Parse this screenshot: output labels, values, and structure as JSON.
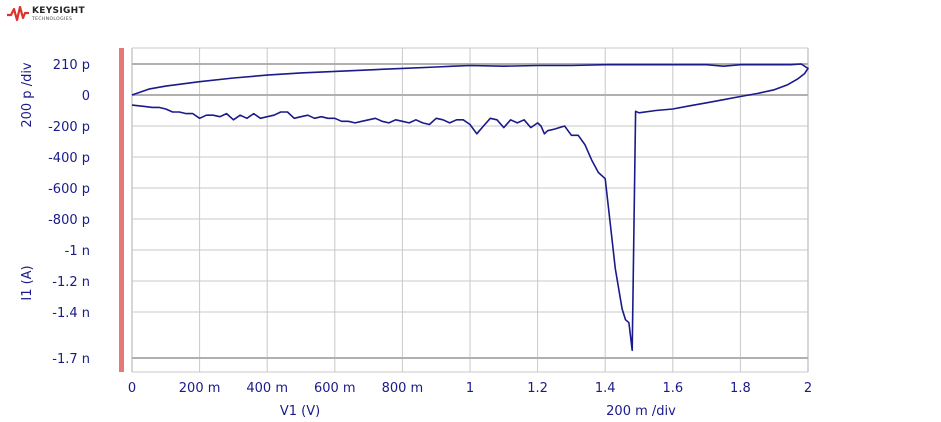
{
  "logo": {
    "name": "KEYSIGHT",
    "sub": "TECHNOLOGIES",
    "color": "#e0302a"
  },
  "chart_data": {
    "type": "line",
    "xlabel": "V1 (V)",
    "xscale_label": "200 m /div",
    "ylabel": "I1 (A)",
    "yscale_label": "200 p /div",
    "xlim": [
      0,
      2
    ],
    "ylim": [
      -1.72e-09,
      2.3e-10
    ],
    "x_ticks": [
      {
        "v": 0,
        "label": "0"
      },
      {
        "v": 0.2,
        "label": "200 m"
      },
      {
        "v": 0.4,
        "label": "400 m"
      },
      {
        "v": 0.6,
        "label": "600 m"
      },
      {
        "v": 0.8,
        "label": "800 m"
      },
      {
        "v": 1.0,
        "label": "1"
      },
      {
        "v": 1.2,
        "label": "1.2"
      },
      {
        "v": 1.4,
        "label": "1.4"
      },
      {
        "v": 1.6,
        "label": "1.6"
      },
      {
        "v": 1.8,
        "label": "1.8"
      },
      {
        "v": 2.0,
        "label": "2"
      }
    ],
    "y_ticks": [
      {
        "v": 2.1e-10,
        "label": "210 p"
      },
      {
        "v": 0,
        "label": "0"
      },
      {
        "v": -2e-10,
        "label": "-200 p"
      },
      {
        "v": -4e-10,
        "label": "-400 p"
      },
      {
        "v": -6e-10,
        "label": "-600 p"
      },
      {
        "v": -8e-10,
        "label": "-800 p"
      },
      {
        "v": -1e-09,
        "label": "-1 n"
      },
      {
        "v": -1.2e-09,
        "label": "-1.2 n"
      },
      {
        "v": -1.4e-09,
        "label": "-1.4 n"
      },
      {
        "v": -1.7e-09,
        "label": "-1.7 n"
      }
    ],
    "grid": true,
    "colors": {
      "series": "#1a1a8a",
      "grid": "#c8c8c8",
      "marker_bar": "#e87878"
    },
    "series": [
      {
        "x": [
          0,
          0.05,
          0.1,
          0.2,
          0.3,
          0.4,
          0.5,
          0.6,
          0.7,
          0.8,
          0.9,
          0.95,
          1.0,
          1.1,
          1.2,
          1.3,
          1.4,
          1.5,
          1.6,
          1.7,
          1.75,
          1.8,
          1.85,
          1.9,
          1.95,
          1.98,
          2.0,
          1.99,
          1.97,
          1.94,
          1.9,
          1.85,
          1.8,
          1.75,
          1.7,
          1.65,
          1.6,
          1.55,
          1.5,
          1.49,
          1.48,
          1.47,
          1.46,
          1.45,
          1.43,
          1.4,
          1.38,
          1.36,
          1.34,
          1.32,
          1.3,
          1.28,
          1.25,
          1.23,
          1.22,
          1.21,
          1.2,
          1.18,
          1.16,
          1.14,
          1.12,
          1.1,
          1.08,
          1.06,
          1.04,
          1.02,
          1.0,
          0.98,
          0.96,
          0.94,
          0.92,
          0.9,
          0.88,
          0.86,
          0.84,
          0.82,
          0.8,
          0.78,
          0.76,
          0.74,
          0.72,
          0.7,
          0.68,
          0.66,
          0.64,
          0.62,
          0.6,
          0.58,
          0.56,
          0.54,
          0.52,
          0.5,
          0.48,
          0.46,
          0.44,
          0.42,
          0.4,
          0.38,
          0.36,
          0.34,
          0.32,
          0.3,
          0.28,
          0.26,
          0.24,
          0.22,
          0.2,
          0.18,
          0.16,
          0.14,
          0.12,
          0.1,
          0.08,
          0.06,
          0.04,
          0.02,
          0
        ],
        "y": [
          0,
          4e-11,
          6e-11,
          9e-11,
          1.15e-10,
          1.35e-10,
          1.5e-10,
          1.6e-10,
          1.7e-10,
          1.8e-10,
          1.9e-10,
          1.95e-10,
          2e-10,
          1.95e-10,
          2e-10,
          2e-10,
          2.05e-10,
          2.05e-10,
          2.05e-10,
          2.05e-10,
          1.95e-10,
          2.05e-10,
          2.05e-10,
          2.05e-10,
          2.05e-10,
          2.1e-10,
          1.8e-10,
          1.45e-10,
          1.1e-10,
          7e-11,
          3.5e-11,
          1e-11,
          -1e-11,
          -3e-11,
          -5e-11,
          -7e-11,
          -9e-11,
          -1e-10,
          -1.15e-10,
          -1.05e-10,
          -1.65e-09,
          -1.47e-09,
          -1.45e-09,
          -1.38e-09,
          -1.12e-09,
          -5.4e-10,
          -5e-10,
          -4.2e-10,
          -3.2e-10,
          -2.6e-10,
          -2.6e-10,
          -2e-10,
          -2.2e-10,
          -2.3e-10,
          -2.5e-10,
          -2e-10,
          -1.8e-10,
          -2.1e-10,
          -1.6e-10,
          -1.8e-10,
          -1.6e-10,
          -2.1e-10,
          -1.6e-10,
          -1.5e-10,
          -2e-10,
          -2.5e-10,
          -1.9e-10,
          -1.6e-10,
          -1.6e-10,
          -1.8e-10,
          -1.6e-10,
          -1.5e-10,
          -1.9e-10,
          -1.8e-10,
          -1.6e-10,
          -1.8e-10,
          -1.7e-10,
          -1.6e-10,
          -1.8e-10,
          -1.7e-10,
          -1.5e-10,
          -1.6e-10,
          -1.7e-10,
          -1.8e-10,
          -1.7e-10,
          -1.7e-10,
          -1.5e-10,
          -1.5e-10,
          -1.4e-10,
          -1.5e-10,
          -1.3e-10,
          -1.4e-10,
          -1.5e-10,
          -1.1e-10,
          -1.1e-10,
          -1.3e-10,
          -1.4e-10,
          -1.5e-10,
          -1.2e-10,
          -1.5e-10,
          -1.3e-10,
          -1.6e-10,
          -1.2e-10,
          -1.4e-10,
          -1.3e-10,
          -1.3e-10,
          -1.5e-10,
          -1.2e-10,
          -1.2e-10,
          -1.1e-10,
          -1.1e-10,
          -9e-11,
          -8e-11,
          -8e-11,
          -7.5e-11,
          -7e-11,
          -6.5e-11
        ]
      }
    ]
  }
}
